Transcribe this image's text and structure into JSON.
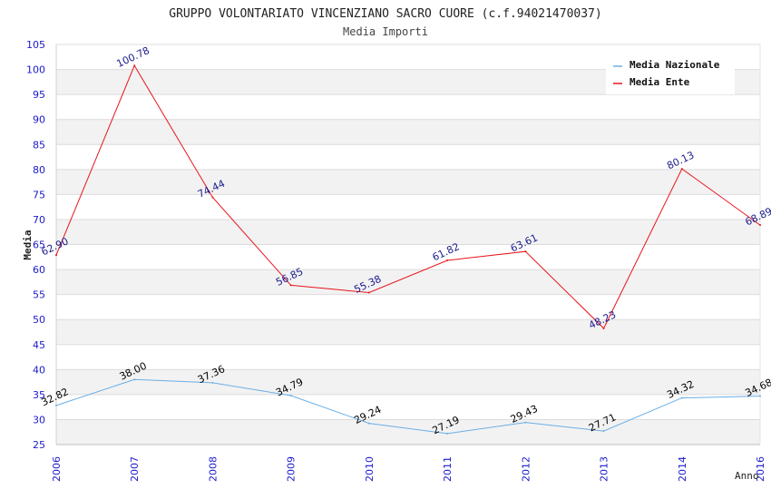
{
  "chart_data": {
    "type": "line",
    "title": "GRUPPO VOLONTARIATO VINCENZIANO SACRO CUORE (c.f.94021470037)",
    "subtitle": "Media Importi",
    "xlabel": "Anno",
    "ylabel": "Media",
    "x": [
      "2006",
      "2007",
      "2008",
      "2009",
      "2010",
      "2011",
      "2012",
      "2013",
      "2014",
      "2016"
    ],
    "ylim": [
      25,
      105
    ],
    "yticks": [
      25,
      30,
      35,
      40,
      45,
      50,
      55,
      60,
      65,
      70,
      75,
      80,
      85,
      90,
      95,
      100,
      105
    ],
    "grid": "horizontal-bands",
    "legend_position": "top-right",
    "series": [
      {
        "name": "Media Nazionale",
        "color": "#6aaee6",
        "label_color": "#000000",
        "values": [
          32.82,
          38.0,
          37.36,
          34.79,
          29.24,
          27.19,
          29.43,
          27.71,
          34.32,
          34.68
        ],
        "labels": [
          "32.82",
          "38.00",
          "37.36",
          "34.79",
          "29.24",
          "27.19",
          "29.43",
          "27.71",
          "34.32",
          "34.68"
        ]
      },
      {
        "name": "Media Ente",
        "color": "#e8141c",
        "label_color": "#1a1a8c",
        "values": [
          62.9,
          100.78,
          74.44,
          56.85,
          55.38,
          61.82,
          63.61,
          48.23,
          80.13,
          68.89
        ],
        "labels": [
          "62.90",
          "100.78",
          "74.44",
          "56.85",
          "55.38",
          "61.82",
          "63.61",
          "48.23",
          "80.13",
          "68.89"
        ]
      }
    ]
  },
  "colors": {
    "tick_labels": "#1a1acc",
    "band_fill": "#f2f2f2",
    "grid_line": "#dcdcdc",
    "axis_text": "#333333"
  }
}
